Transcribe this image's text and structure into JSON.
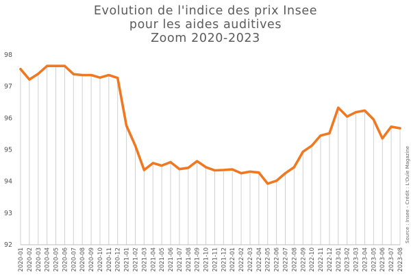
{
  "chart_data": {
    "type": "line",
    "title": [
      "Evolution de l'indice des prix Insee",
      "pour les aides auditives",
      "Zoom 2020-2023"
    ],
    "xlabel": "",
    "ylabel": "",
    "ylim": [
      92,
      98
    ],
    "yticks": [
      92,
      93,
      94,
      95,
      96,
      97,
      98
    ],
    "grid": "vertical",
    "line_color": "#f07820",
    "gridline_color": "#d0d0d0",
    "source": "Source : Insee - Crédit : L'Ouïe Magazine",
    "x": [
      "2020-01",
      "2020-02",
      "2020-03",
      "2020-04",
      "2020-05",
      "2020-06",
      "2020-07",
      "2020-08",
      "2020-09",
      "2020-10",
      "2020-11",
      "2020-12",
      "2021-01",
      "2021-02",
      "2021-03",
      "2021-04",
      "2021-05",
      "2021-06",
      "2021-07",
      "2021-08",
      "2021-09",
      "2021-10",
      "2021-11",
      "2021-12",
      "2022-01",
      "2022-02",
      "2022-03",
      "2022-04",
      "2022-05",
      "2022-06",
      "2022-07",
      "2022-08",
      "2022-09",
      "2022-10",
      "2022-11",
      "2022-12",
      "2023-01",
      "2023-02",
      "2023-03",
      "2023-04",
      "2023-05",
      "2023-06",
      "2023-07",
      "2023-08"
    ],
    "values": [
      97.55,
      97.22,
      97.4,
      97.65,
      97.65,
      97.65,
      97.39,
      97.36,
      97.36,
      97.28,
      97.36,
      97.27,
      95.76,
      95.13,
      94.36,
      94.58,
      94.5,
      94.61,
      94.39,
      94.43,
      94.64,
      94.45,
      94.35,
      94.36,
      94.38,
      94.26,
      94.31,
      94.28,
      93.93,
      94.02,
      94.26,
      94.45,
      94.94,
      95.13,
      95.45,
      95.52,
      96.33,
      96.05,
      96.19,
      96.24,
      95.96,
      95.36,
      95.73,
      95.68
    ]
  }
}
